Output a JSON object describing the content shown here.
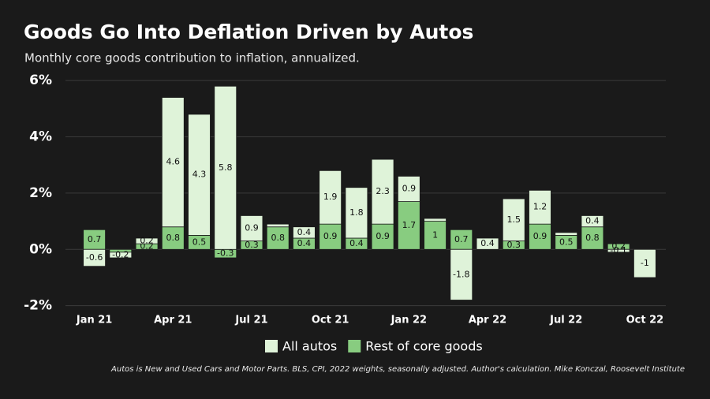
{
  "chart_data": {
    "type": "stacked-bar",
    "title": "Goods Go Into Deflation Driven by Autos",
    "subtitle": "Monthly core goods contribution to inflation, annualized.",
    "footnote": "Autos is New and Used Cars and Motor Parts. BLS, CPI, 2022 weights, seasonally adjusted. Author's calculation. Mike Konczal, Roosevelt Institute",
    "categories": [
      "Jan 21",
      null,
      null,
      "Apr 21",
      null,
      null,
      "Jul 21",
      null,
      null,
      "Oct 21",
      null,
      null,
      "Jan 22",
      null,
      null,
      "Apr 22",
      null,
      null,
      "Jul 22",
      null,
      null,
      "Oct 22"
    ],
    "series": [
      {
        "name": "Rest of core goods",
        "color": "#88cc80",
        "values": [
          0.7,
          -0.1,
          0.2,
          0.8,
          0.5,
          -0.3,
          0.3,
          0.8,
          0.4,
          0.9,
          0.4,
          0.9,
          1.7,
          1,
          0.7,
          0,
          0.3,
          0.9,
          0.5,
          0.8,
          0.2,
          0
        ],
        "value_labels": [
          "0.7",
          null,
          "0.2",
          "0.8",
          "0.5",
          "-0.3",
          "0.3",
          "0.8",
          "0.4",
          "0.9",
          "0.4",
          "0.9",
          "1.7",
          "1",
          "0.7",
          null,
          "0.3",
          "0.9",
          "0.5",
          "0.8",
          "0.2",
          null
        ]
      },
      {
        "name": "All autos",
        "color": "#dff3d9",
        "values": [
          -0.6,
          -0.2,
          0.2,
          4.6,
          4.3,
          5.8,
          0.9,
          0.1,
          0.4,
          1.9,
          1.8,
          2.3,
          0.9,
          0.1,
          -1.8,
          0.4,
          1.5,
          1.2,
          0.1,
          0.4,
          -0.1,
          -1
        ],
        "value_labels": [
          "-0.6",
          "-0.2",
          "0.2",
          "4.6",
          "4.3",
          "5.8",
          "0.9",
          null,
          "0.4",
          "1.9",
          "1.8",
          "2.3",
          "0.9",
          null,
          "-1.8",
          "0.4",
          "1.5",
          "1.2",
          null,
          "0.4",
          "-0.1",
          "-1"
        ]
      }
    ],
    "legend_order": [
      1,
      0
    ],
    "ylim": [
      -2.15,
      6.2
    ],
    "yticks": [
      {
        "value": -2,
        "label": "-2%"
      },
      {
        "value": 0,
        "label": "0%"
      },
      {
        "value": 2,
        "label": "2%"
      },
      {
        "value": 4,
        "label": "4%"
      },
      {
        "value": 6,
        "label": "6%"
      }
    ],
    "grid": true
  }
}
